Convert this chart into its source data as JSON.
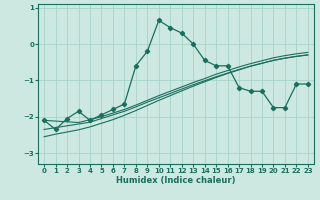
{
  "xlabel": "Humidex (Indice chaleur)",
  "x": [
    0,
    1,
    2,
    3,
    4,
    5,
    6,
    7,
    8,
    9,
    10,
    11,
    12,
    13,
    14,
    15,
    16,
    17,
    18,
    19,
    20,
    21,
    22,
    23
  ],
  "main_y": [
    -2.1,
    -2.35,
    -2.05,
    -1.85,
    -2.1,
    -1.95,
    -1.8,
    -1.65,
    -0.6,
    -0.2,
    0.65,
    0.45,
    0.3,
    0.0,
    -0.45,
    -0.6,
    -0.6,
    -1.2,
    -1.3,
    -1.3,
    -1.75,
    -1.75,
    -1.1,
    -1.1
  ],
  "line1_y": [
    -2.1,
    -2.12,
    -2.14,
    -2.16,
    -2.08,
    -2.0,
    -1.9,
    -1.8,
    -1.68,
    -1.55,
    -1.42,
    -1.3,
    -1.18,
    -1.06,
    -0.95,
    -0.83,
    -0.73,
    -0.63,
    -0.54,
    -0.46,
    -0.38,
    -0.32,
    -0.27,
    -0.23
  ],
  "line2_y": [
    -2.35,
    -2.3,
    -2.25,
    -2.2,
    -2.15,
    -2.05,
    -1.95,
    -1.85,
    -1.73,
    -1.6,
    -1.48,
    -1.36,
    -1.24,
    -1.12,
    -1.01,
    -0.9,
    -0.8,
    -0.7,
    -0.61,
    -0.53,
    -0.45,
    -0.39,
    -0.34,
    -0.3
  ],
  "line3_y": [
    -2.55,
    -2.48,
    -2.42,
    -2.36,
    -2.28,
    -2.18,
    -2.08,
    -1.96,
    -1.83,
    -1.69,
    -1.55,
    -1.42,
    -1.29,
    -1.16,
    -1.04,
    -0.92,
    -0.81,
    -0.71,
    -0.61,
    -0.53,
    -0.45,
    -0.39,
    -0.34,
    -0.3
  ],
  "bg_color": "#cce8e0",
  "grid_color": "#a8d4ca",
  "line_color": "#1a6e5e",
  "ylim": [
    -3.3,
    1.1
  ],
  "xlim": [
    -0.5,
    23.5
  ],
  "yticks": [
    -3,
    -2,
    -1,
    0,
    1
  ],
  "xticks": [
    0,
    1,
    2,
    3,
    4,
    5,
    6,
    7,
    8,
    9,
    10,
    11,
    12,
    13,
    14,
    15,
    16,
    17,
    18,
    19,
    20,
    21,
    22,
    23
  ]
}
